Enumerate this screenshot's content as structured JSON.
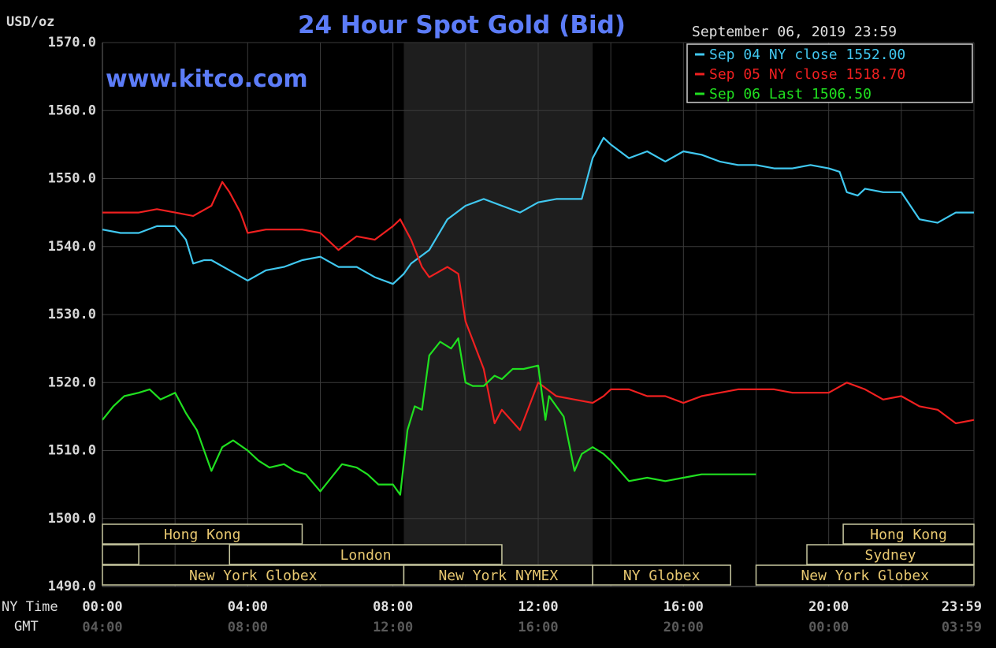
{
  "chart_data": {
    "type": "line",
    "title": "24 Hour Spot Gold (Bid)",
    "watermark": "www.kitco.com",
    "date_label": "September 06, 2019 23:59",
    "y_unit": "USD/oz",
    "ylim": [
      1490,
      1570
    ],
    "yticks": [
      "1570.0",
      "1560.0",
      "1550.0",
      "1540.0",
      "1530.0",
      "1520.0",
      "1510.0",
      "1500.0",
      "1490.0"
    ],
    "x_label_ny": "NY Time",
    "x_label_gmt": "GMT",
    "xlim": [
      0,
      24
    ],
    "xticks_ny": [
      {
        "h": 0,
        "label": "00:00"
      },
      {
        "h": 4,
        "label": "04:00"
      },
      {
        "h": 8,
        "label": "08:00"
      },
      {
        "h": 12,
        "label": "12:00"
      },
      {
        "h": 16,
        "label": "16:00"
      },
      {
        "h": 20,
        "label": "20:00"
      },
      {
        "h": 24,
        "label": "23:59"
      }
    ],
    "xticks_gmt": [
      {
        "h": 0,
        "label": "04:00"
      },
      {
        "h": 4,
        "label": "08:00"
      },
      {
        "h": 8,
        "label": "12:00"
      },
      {
        "h": 12,
        "label": "16:00"
      },
      {
        "h": 16,
        "label": "20:00"
      },
      {
        "h": 20,
        "label": "00:00"
      },
      {
        "h": 24,
        "label": "03:59"
      }
    ],
    "grid": true,
    "legend_position": "top-right",
    "shaded_period": [
      8.3,
      13.5
    ],
    "series": [
      {
        "name": "Sep 04 NY close 1552.00",
        "color": "#40c8f0",
        "x": [
          0,
          0.5,
          1,
          1.5,
          2,
          2.3,
          2.5,
          2.8,
          3,
          3.5,
          4,
          4.5,
          5,
          5.5,
          6,
          6.5,
          7,
          7.5,
          8,
          8.3,
          8.5,
          9,
          9.5,
          10,
          10.5,
          11,
          11.5,
          12,
          12.5,
          13,
          13.2,
          13.5,
          13.8,
          14,
          14.5,
          15,
          15.5,
          16,
          16.5,
          17,
          17.5,
          18,
          18.5,
          19,
          19.5,
          20,
          20.3,
          20.5,
          20.8,
          21,
          21.5,
          22,
          22.5,
          23,
          23.5,
          24
        ],
        "y": [
          1542.5,
          1542,
          1542,
          1543,
          1543,
          1541,
          1537.5,
          1538,
          1538,
          1536.5,
          1535,
          1536.5,
          1537,
          1538,
          1538.5,
          1537,
          1537,
          1535.5,
          1534.5,
          1536,
          1537.5,
          1539.5,
          1544,
          1546,
          1547,
          1546,
          1545,
          1546.5,
          1547,
          1547,
          1547,
          1553,
          1556,
          1555,
          1553,
          1554,
          1552.5,
          1554,
          1553.5,
          1552.5,
          1552,
          1552,
          1551.5,
          1551.5,
          1552,
          1551.5,
          1551,
          1548,
          1547.5,
          1548.5,
          1548,
          1548,
          1544,
          1543.5,
          1545,
          1545
        ]
      },
      {
        "name": "Sep 05 NY close 1518.70",
        "color": "#f02020",
        "x": [
          0,
          0.5,
          1,
          1.5,
          2,
          2.5,
          3,
          3.3,
          3.5,
          3.8,
          4,
          4.5,
          5,
          5.5,
          6,
          6.5,
          7,
          7.5,
          8,
          8.2,
          8.5,
          8.8,
          9,
          9.5,
          9.8,
          10,
          10.5,
          10.8,
          11,
          11.5,
          12,
          12.5,
          13,
          13.5,
          13.8,
          14,
          14.5,
          15,
          15.5,
          16,
          16.5,
          17,
          17.5,
          18,
          18.5,
          19,
          19.5,
          20,
          20.5,
          21,
          21.5,
          22,
          22.5,
          23,
          23.5,
          24
        ],
        "y": [
          1545,
          1545,
          1545,
          1545.5,
          1545,
          1544.5,
          1546,
          1549.5,
          1548,
          1545,
          1542,
          1542.5,
          1542.5,
          1542.5,
          1542,
          1539.5,
          1541.5,
          1541,
          1543,
          1544,
          1541,
          1537,
          1535.5,
          1537,
          1536,
          1529,
          1522,
          1514,
          1516,
          1513,
          1520,
          1518,
          1517.5,
          1517,
          1518,
          1519,
          1519,
          1518,
          1518,
          1517,
          1518,
          1518.5,
          1519,
          1519,
          1519,
          1518.5,
          1518.5,
          1518.5,
          1520,
          1519,
          1517.5,
          1518,
          1516.5,
          1516,
          1514,
          1514.5
        ]
      },
      {
        "name": "Sep 06 Last 1506.50",
        "color": "#20e020",
        "x": [
          0,
          0.3,
          0.6,
          1,
          1.3,
          1.6,
          2,
          2.3,
          2.6,
          3,
          3.3,
          3.6,
          4,
          4.3,
          4.6,
          5,
          5.3,
          5.6,
          6,
          6.3,
          6.6,
          7,
          7.3,
          7.6,
          8,
          8.2,
          8.4,
          8.6,
          8.8,
          9,
          9.3,
          9.6,
          9.8,
          10,
          10.2,
          10.5,
          10.8,
          11,
          11.3,
          11.6,
          12,
          12.2,
          12.3,
          12.5,
          12.7,
          13,
          13.2,
          13.5,
          13.8,
          14,
          14.5,
          15,
          15.5,
          16,
          16.5,
          17,
          17.5,
          18
        ],
        "y": [
          1514.5,
          1516.5,
          1518,
          1518.5,
          1519,
          1517.5,
          1518.5,
          1515.5,
          1513,
          1507,
          1510.5,
          1511.5,
          1510,
          1508.5,
          1507.5,
          1508,
          1507,
          1506.5,
          1504,
          1506,
          1508,
          1507.5,
          1506.5,
          1505,
          1505,
          1503.5,
          1513,
          1516.5,
          1516,
          1524,
          1526,
          1525,
          1526.5,
          1520,
          1519.5,
          1519.5,
          1521,
          1520.5,
          1522,
          1522,
          1522.5,
          1514.5,
          1518,
          1516.5,
          1515,
          1507,
          1509.5,
          1510.5,
          1509.5,
          1508.5,
          1505.5,
          1506,
          1505.5,
          1506,
          1506.5,
          1506.5,
          1506.5,
          1506.5
        ]
      }
    ],
    "sessions": [
      {
        "label": "Hong Kong",
        "start": 0,
        "end": 5.5,
        "row": 0
      },
      {
        "label": "",
        "start": 0,
        "end": 1,
        "row": 1
      },
      {
        "label": "London",
        "start": 3.5,
        "end": 11,
        "row": 1
      },
      {
        "label": "New York Globex",
        "start": 0,
        "end": 8.3,
        "row": 2
      },
      {
        "label": "New York NYMEX",
        "start": 8.3,
        "end": 13.5,
        "row": 2
      },
      {
        "label": "NY Globex",
        "start": 13.5,
        "end": 17.3,
        "row": 2
      },
      {
        "label": "Hong Kong",
        "start": 20.4,
        "end": 24,
        "row": 0
      },
      {
        "label": "Sydney",
        "start": 19.4,
        "end": 24,
        "row": 1
      },
      {
        "label": "New York Globex",
        "start": 18,
        "end": 24,
        "row": 2
      }
    ]
  }
}
